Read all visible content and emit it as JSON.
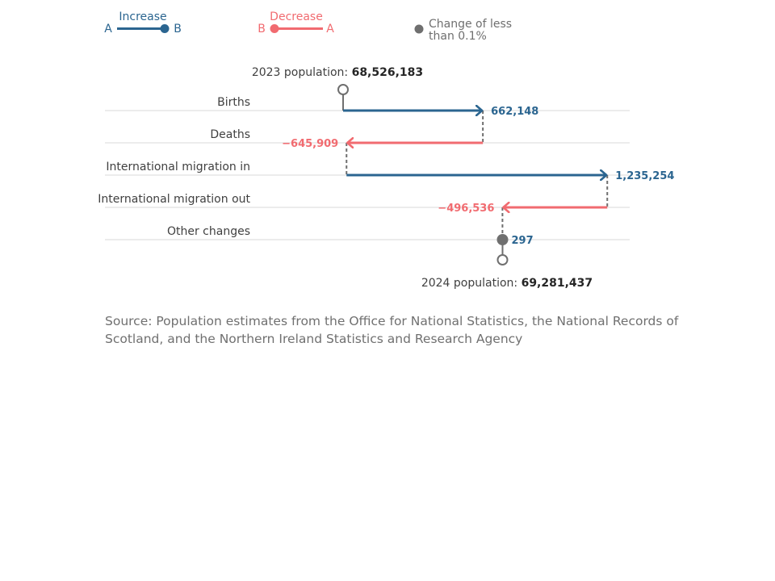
{
  "legend": {
    "increase": {
      "title": "Increase",
      "start": "A",
      "end": "B"
    },
    "decrease": {
      "title": "Decrease",
      "start": "B",
      "end": "A"
    },
    "small": {
      "line1": "Change of less",
      "line2": "than 0.1%"
    }
  },
  "colors": {
    "increase": "#2b6590",
    "decrease": "#f16b70",
    "small": "#6f6f6f",
    "label": "#404040",
    "grid": "#d9d9d9",
    "source": "#707070"
  },
  "chart_data": {
    "type": "waterfall",
    "start": {
      "label": "2023 population: ",
      "value_text": "68,526,183",
      "value": 68526183
    },
    "end": {
      "label": "2024 population: ",
      "value_text": "69,281,437",
      "value": 69281437
    },
    "components": [
      {
        "category": "Births",
        "value": 662148,
        "value_text": "662,148",
        "kind": "increase"
      },
      {
        "category": "Deaths",
        "value": -645909,
        "value_text": "−645,909",
        "kind": "decrease"
      },
      {
        "category": "International migration in",
        "value": 1235254,
        "value_text": "1,235,254",
        "kind": "increase"
      },
      {
        "category": "International migration out",
        "value": -496536,
        "value_text": "−496,536",
        "kind": "decrease"
      },
      {
        "category": "Other changes",
        "value": 297,
        "value_text": "297",
        "kind": "small"
      }
    ]
  },
  "source": "Source: Population estimates from the Office for National Statistics, the National Records of Scotland, and the Northern Ireland Statistics and Research Agency"
}
